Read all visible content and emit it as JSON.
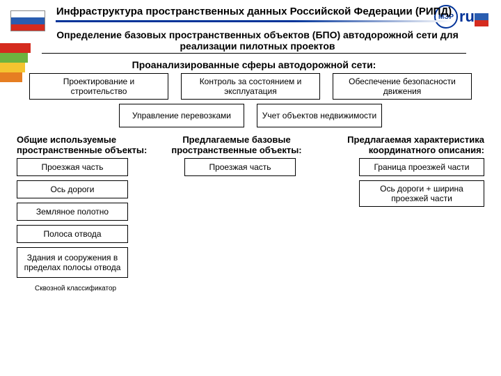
{
  "header": {
    "title": "Инфраструктура пространственных данных Российской Федерации (РИПД)",
    "logo_right_abbr": "МЭР",
    "logo_right_text": "ru"
  },
  "subheader": "Определение базовых пространственных объектов (БПО) автодорожной сети для реализации пилотных проектов",
  "analyzed_title": "Проанализированные сферы автодорожной сети:",
  "spheres_row1": [
    "Проектирование и строительство",
    "Контроль за состоянием и эксплуатация",
    "Обеспечение безопасности движения"
  ],
  "spheres_row2": [
    "Управление перевозками",
    "Учет объектов недвижимости"
  ],
  "col_headers": {
    "h1": "Общие используемые пространственные объекты:",
    "h2": "Предлагаемые базовые пространственные объекты:",
    "h3": "Предлагаемая характеристика координатного описания:"
  },
  "col1": [
    "Проезжая часть",
    "Ось дороги",
    "Земляное полотно",
    "Полоса отвода",
    "Здания и сооружения в пределах полосы отвода"
  ],
  "col2": [
    "Проезжая часть"
  ],
  "col3": [
    "Граница проезжей части",
    "Ось дороги + ширина проезжей части"
  ],
  "footnote": "Сквозной классификатор",
  "colors": {
    "blue": "#003399",
    "red": "#d52b1e",
    "green": "#6db33f",
    "yellow": "#f4c430",
    "orange": "#e67e22",
    "flag_blue": "#2a5db0"
  }
}
